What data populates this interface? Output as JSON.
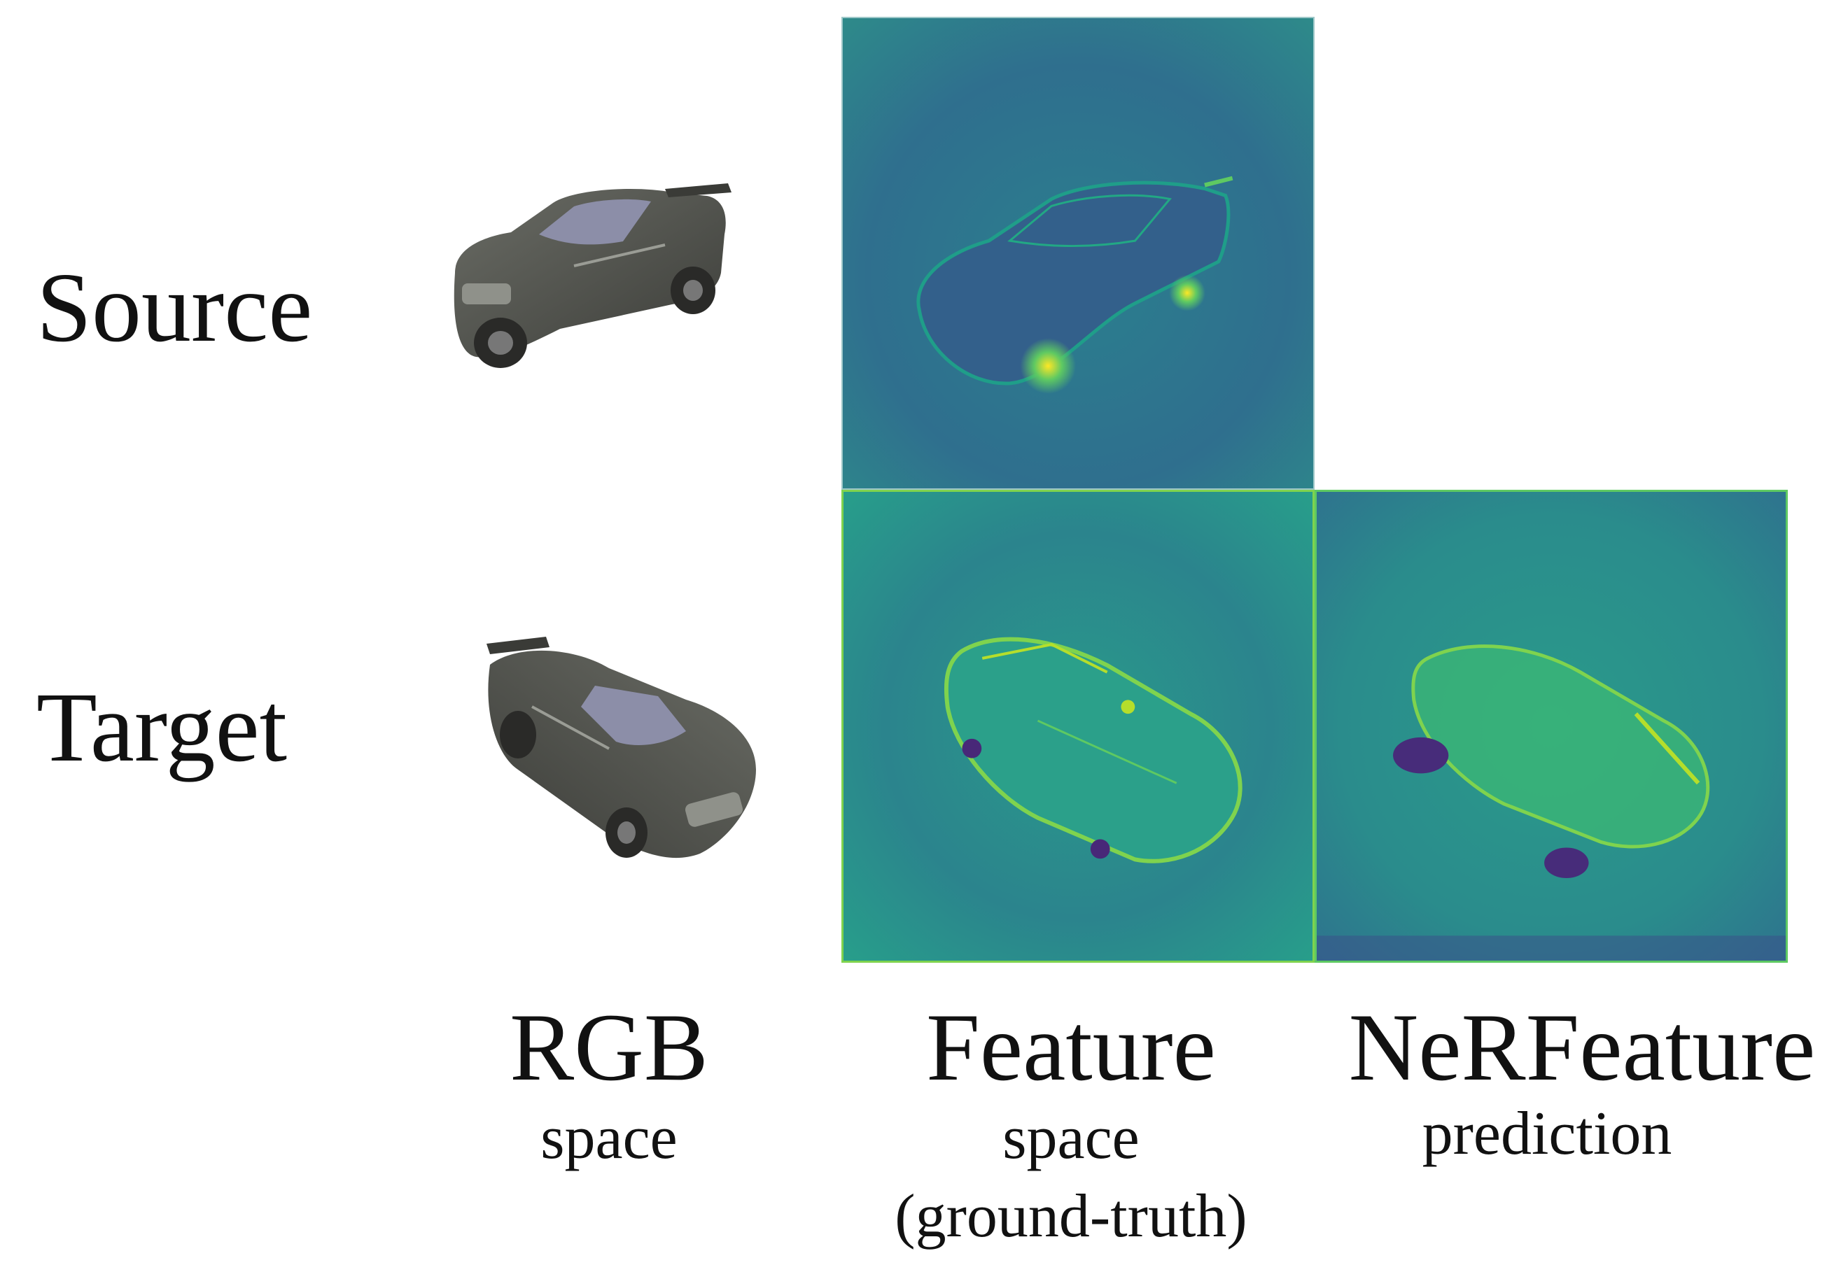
{
  "rows": {
    "source_label": "Source",
    "target_label": "Target"
  },
  "columns": {
    "rgb": {
      "title": "RGB",
      "subtitle": "space"
    },
    "feature": {
      "title": "Feature",
      "subtitle_line1": "space",
      "subtitle_line2": "(ground-truth)"
    },
    "nerfeature": {
      "title": "NeRFeature",
      "subtitle": "prediction"
    }
  },
  "colors": {
    "viridis_dark": "#3b528b",
    "viridis_mid": "#21918c",
    "viridis_teal": "#2a9a8a",
    "viridis_green": "#5ec962",
    "viridis_yellow": "#fde725",
    "viridis_purple": "#440154",
    "car_body": "#4f514b",
    "car_glass": "#8c8ea8"
  },
  "icons": {
    "source_car": "car-image-source",
    "target_car": "car-image-target"
  }
}
